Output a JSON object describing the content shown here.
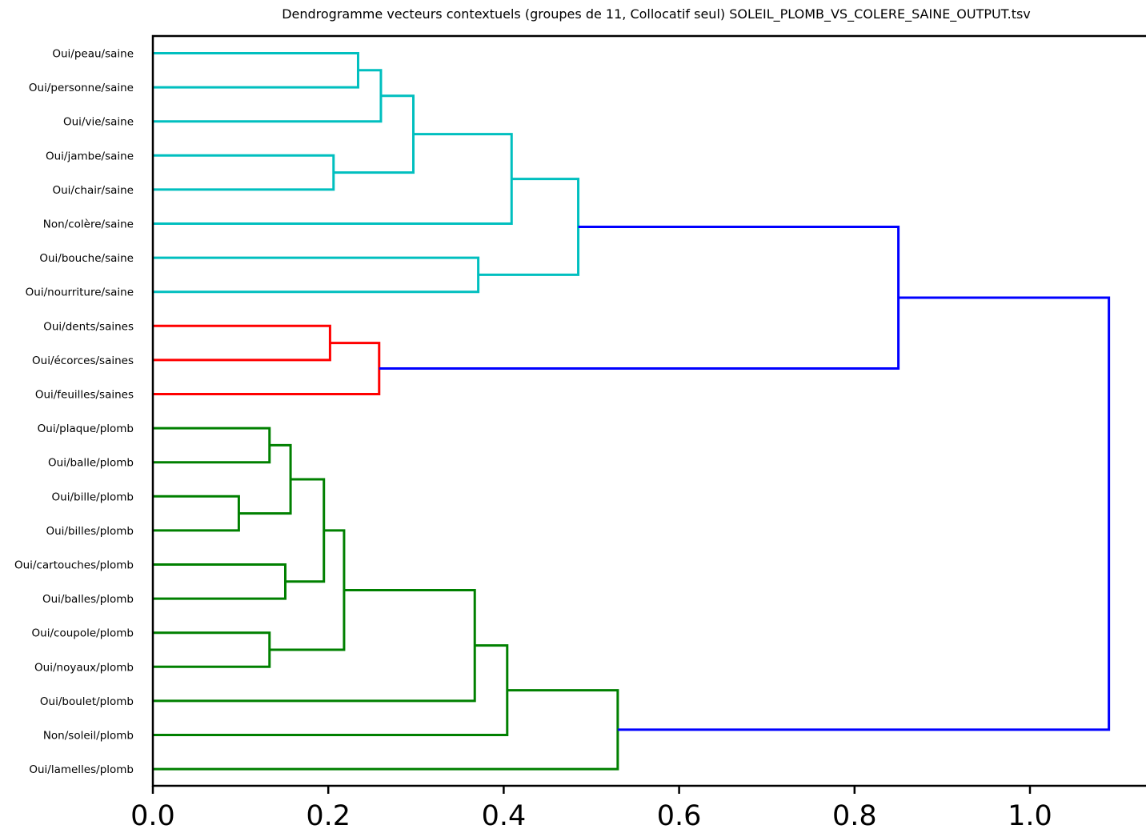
{
  "chart_data": {
    "type": "dendrogram",
    "orientation": "left",
    "title": "Dendrogramme vecteurs contextuels (groupes de 11, Collocatif seul) SOLEIL_PLOMB_VS_COLERE_SAINE_OUTPUT.tsv",
    "xlabel": "",
    "ylabel": "",
    "xlim": [
      0,
      1.13
    ],
    "x_ticks": [
      0.0,
      0.2,
      0.4,
      0.6,
      0.8,
      1.0
    ],
    "x_tick_labels": [
      "0.0",
      "0.2",
      "0.4",
      "0.6",
      "0.8",
      "1.0"
    ],
    "leaves": [
      "Oui/peau/saine",
      "Oui/personne/saine",
      "Oui/vie/saine",
      "Oui/jambe/saine",
      "Oui/chair/saine",
      "Non/colère/saine",
      "Oui/bouche/saine",
      "Oui/nourriture/saine",
      "Oui/dents/saines",
      "Oui/écorces/saines",
      "Oui/feuilles/saines",
      "Oui/plaque/plomb",
      "Oui/balle/plomb",
      "Oui/bille/plomb",
      "Oui/billes/plomb",
      "Oui/cartouches/plomb",
      "Oui/balles/plomb",
      "Oui/coupole/plomb",
      "Oui/noyaux/plomb",
      "Oui/boulet/plomb",
      "Non/soleil/plomb",
      "Oui/lamelles/plomb"
    ],
    "colors": {
      "cyan": "#00bfbf",
      "red": "#ff0000",
      "green": "#008000",
      "above": "#0000ff"
    },
    "merges": [
      {
        "left": "L0",
        "right": "L1",
        "height": 0.234,
        "color": "cyan"
      },
      {
        "left": "M0",
        "right": "L2",
        "height": 0.26,
        "color": "cyan"
      },
      {
        "left": "L3",
        "right": "L4",
        "height": 0.206,
        "color": "cyan"
      },
      {
        "left": "M1",
        "right": "M2",
        "height": 0.297,
        "color": "cyan"
      },
      {
        "left": "M3",
        "right": "L5",
        "height": 0.409,
        "color": "cyan"
      },
      {
        "left": "L6",
        "right": "L7",
        "height": 0.371,
        "color": "cyan"
      },
      {
        "left": "M4",
        "right": "M5",
        "height": 0.485,
        "color": "cyan"
      },
      {
        "left": "L8",
        "right": "L9",
        "height": 0.202,
        "color": "red"
      },
      {
        "left": "M7",
        "right": "L10",
        "height": 0.258,
        "color": "red"
      },
      {
        "left": "M6",
        "right": "M8",
        "height": 0.85,
        "color": "above"
      },
      {
        "left": "L11",
        "right": "L12",
        "height": 0.133,
        "color": "green"
      },
      {
        "left": "L13",
        "right": "L14",
        "height": 0.098,
        "color": "green"
      },
      {
        "left": "M10",
        "right": "M11",
        "height": 0.157,
        "color": "green"
      },
      {
        "left": "L15",
        "right": "L16",
        "height": 0.151,
        "color": "green"
      },
      {
        "left": "M12",
        "right": "M13",
        "height": 0.195,
        "color": "green"
      },
      {
        "left": "L17",
        "right": "L18",
        "height": 0.133,
        "color": "green"
      },
      {
        "left": "M14",
        "right": "M15",
        "height": 0.218,
        "color": "green"
      },
      {
        "left": "M16",
        "right": "L19",
        "height": 0.367,
        "color": "green"
      },
      {
        "left": "M17",
        "right": "L20",
        "height": 0.404,
        "color": "green"
      },
      {
        "left": "M18",
        "right": "L21",
        "height": 0.53,
        "color": "green"
      },
      {
        "left": "M9",
        "right": "M19",
        "height": 1.09,
        "color": "above"
      }
    ]
  }
}
